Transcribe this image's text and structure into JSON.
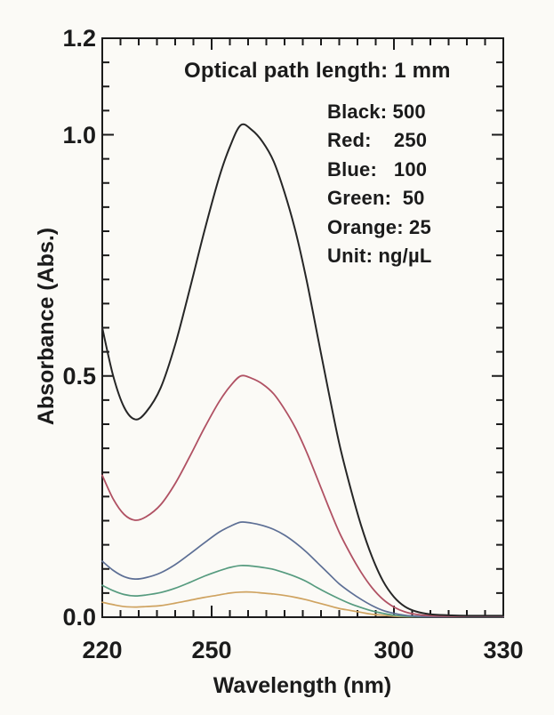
{
  "page": {
    "background": "#fbfaf6",
    "text_color": "#1b1b1b"
  },
  "chart_data": {
    "type": "line",
    "annotation": "Optical path length: 1 mm",
    "xlabel": "Wavelength (nm)",
    "ylabel": "Absorbance (Abs.)",
    "xlim": [
      220,
      330
    ],
    "ylim": [
      0,
      1.2
    ],
    "grid": false,
    "x_minor_step": 5,
    "x_major_ticks": [
      250,
      300
    ],
    "x_tick_labels": [
      {
        "value": 220,
        "text": "220"
      },
      {
        "value": 250,
        "text": "250"
      },
      {
        "value": 300,
        "text": "300"
      },
      {
        "value": 330,
        "text": "330"
      }
    ],
    "y_minor_step": 0.05,
    "y_major_ticks": [
      0.5,
      1.0
    ],
    "y_tick_labels": [
      {
        "value": 0.0,
        "text": "0.0"
      },
      {
        "value": 0.5,
        "text": "0.5"
      },
      {
        "value": 1.0,
        "text": "1.0"
      },
      {
        "value": 1.2,
        "text": "1.2"
      }
    ],
    "legend_position": "upper-right-inside",
    "legend_lines": [
      "Black: 500",
      "Red:    250",
      "Blue:   100",
      "Green:  50",
      "Orange: 25",
      "Unit: ng/µL"
    ],
    "unit": "ng/µL",
    "optical_path_length": "1 mm",
    "x": [
      220,
      223,
      226,
      229,
      232,
      236,
      240,
      244,
      248,
      252,
      255,
      258,
      261,
      264,
      267,
      270,
      273,
      276,
      279,
      282,
      285,
      288,
      291,
      294,
      297,
      300,
      303,
      306,
      310,
      315,
      320,
      325,
      330
    ],
    "series": [
      {
        "name": "Orange: 25 ng/µL",
        "concentration": 25,
        "color": "#cfa360",
        "width": 1.7,
        "values": [
          0.031,
          0.026,
          0.022,
          0.021,
          0.022,
          0.024,
          0.029,
          0.035,
          0.041,
          0.046,
          0.05,
          0.052,
          0.052,
          0.05,
          0.048,
          0.045,
          0.041,
          0.036,
          0.03,
          0.024,
          0.018,
          0.014,
          0.01,
          0.006,
          0.004,
          0.002,
          0.001,
          0.001,
          0.001,
          0.001,
          0.001,
          0.001,
          0.001
        ]
      },
      {
        "name": "Green: 50 ng/µL",
        "concentration": 50,
        "color": "#569b7f",
        "width": 1.7,
        "values": [
          0.066,
          0.055,
          0.047,
          0.044,
          0.046,
          0.051,
          0.06,
          0.072,
          0.085,
          0.096,
          0.103,
          0.107,
          0.106,
          0.103,
          0.099,
          0.092,
          0.084,
          0.074,
          0.061,
          0.049,
          0.038,
          0.028,
          0.02,
          0.013,
          0.008,
          0.004,
          0.002,
          0.001,
          0.001,
          0.001,
          0.001,
          0.001,
          0.001
        ]
      },
      {
        "name": "Blue: 100 ng/µL",
        "concentration": 100,
        "color": "#5d6f95",
        "width": 1.7,
        "values": [
          0.116,
          0.097,
          0.084,
          0.079,
          0.082,
          0.092,
          0.109,
          0.131,
          0.154,
          0.176,
          0.188,
          0.197,
          0.195,
          0.19,
          0.182,
          0.17,
          0.154,
          0.135,
          0.113,
          0.091,
          0.069,
          0.052,
          0.037,
          0.024,
          0.014,
          0.008,
          0.004,
          0.002,
          0.001,
          0.001,
          0.001,
          0.001,
          0.001
        ]
      },
      {
        "name": "Red: 250 ng/µL",
        "concentration": 250,
        "color": "#b05163",
        "width": 1.8,
        "values": [
          0.294,
          0.245,
          0.213,
          0.201,
          0.208,
          0.233,
          0.277,
          0.333,
          0.392,
          0.446,
          0.478,
          0.5,
          0.495,
          0.483,
          0.463,
          0.431,
          0.392,
          0.343,
          0.287,
          0.23,
          0.176,
          0.132,
          0.093,
          0.061,
          0.037,
          0.021,
          0.011,
          0.006,
          0.003,
          0.002,
          0.002,
          0.002,
          0.002
        ]
      },
      {
        "name": "Black: 500 ng/µL",
        "concentration": 500,
        "color": "#262626",
        "width": 2.0,
        "values": [
          0.6,
          0.5,
          0.435,
          0.41,
          0.425,
          0.475,
          0.565,
          0.68,
          0.8,
          0.91,
          0.975,
          1.02,
          1.01,
          0.985,
          0.945,
          0.88,
          0.8,
          0.7,
          0.585,
          0.47,
          0.36,
          0.27,
          0.19,
          0.125,
          0.075,
          0.042,
          0.022,
          0.012,
          0.006,
          0.004,
          0.003,
          0.003,
          0.003
        ]
      }
    ]
  }
}
